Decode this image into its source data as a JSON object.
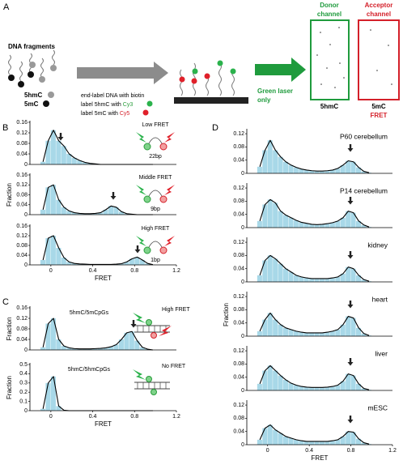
{
  "panel_labels": [
    "A",
    "B",
    "C",
    "D"
  ],
  "panel_a": {
    "dna_fragments": "DNA fragments",
    "legend": [
      "5hmC",
      "5mC"
    ],
    "step_1": "end-label DNA with biotin",
    "step_2": "label 5hmC with",
    "cy3": "Cy3",
    "step_3": "label 5mC with",
    "cy5": "Cy5",
    "laser": [
      "Green laser",
      "only"
    ],
    "donor": [
      "Donor",
      "channel"
    ],
    "acceptor": [
      "Acceptor",
      "channel"
    ],
    "donor_label": "5hmC",
    "acceptor_label": [
      "5mC",
      "FRET"
    ]
  },
  "chart_data": [
    {
      "type": "histogram",
      "annotations": [
        "Low FRET",
        "22bp"
      ],
      "color": "#a8d8e8",
      "line_color": "#000000",
      "bins": [
        -0.1,
        -0.05,
        0,
        0.05,
        0.1,
        0.15,
        0.2,
        0.25,
        0.3,
        0.35,
        0.4,
        0.45,
        0.5,
        0.55,
        0.6,
        0.65,
        0.7,
        0.75,
        0.8,
        0.85,
        0.9,
        0.95,
        1.0
      ],
      "values": [
        0.01,
        0.09,
        0.13,
        0.09,
        0.07,
        0.04,
        0.025,
        0.015,
        0.008,
        0.004,
        0.002,
        0,
        0,
        0,
        0,
        0,
        0,
        0,
        0,
        0,
        0,
        0
      ],
      "xlim": [
        -0.2,
        1.2
      ],
      "ylim": [
        0,
        0.16
      ],
      "yticks": [
        0,
        0.04,
        0.08,
        0.12,
        0.16
      ]
    },
    {
      "type": "histogram",
      "annotations": [
        "Middle FRET",
        "9bp"
      ],
      "ylabel": "Fraction",
      "color": "#a8d8e8",
      "line_color": "#000000",
      "bins": [
        -0.1,
        -0.05,
        0,
        0.05,
        0.1,
        0.15,
        0.2,
        0.25,
        0.3,
        0.35,
        0.4,
        0.45,
        0.5,
        0.55,
        0.6,
        0.65,
        0.7,
        0.75,
        0.8,
        0.85,
        0.9,
        0.95,
        1.0
      ],
      "values": [
        0.02,
        0.11,
        0.12,
        0.06,
        0.03,
        0.015,
        0.008,
        0.005,
        0.004,
        0.004,
        0.005,
        0.008,
        0.02,
        0.035,
        0.03,
        0.012,
        0.004,
        0.002,
        0,
        0,
        0,
        0
      ],
      "xlim": [
        -0.2,
        1.2
      ],
      "ylim": [
        0,
        0.16
      ],
      "yticks": [
        0,
        0.04,
        0.08,
        0.12,
        0.16
      ]
    },
    {
      "type": "histogram",
      "annotations": [
        "High FRET",
        "1bp"
      ],
      "xlabel": "FRET",
      "color": "#a8d8e8",
      "line_color": "#000000",
      "bins": [
        -0.1,
        -0.05,
        0,
        0.05,
        0.1,
        0.15,
        0.2,
        0.25,
        0.3,
        0.35,
        0.4,
        0.45,
        0.5,
        0.55,
        0.6,
        0.65,
        0.7,
        0.75,
        0.8,
        0.85,
        0.9,
        0.95,
        1.0
      ],
      "values": [
        0.02,
        0.11,
        0.12,
        0.07,
        0.03,
        0.012,
        0.006,
        0.004,
        0.003,
        0.002,
        0.002,
        0.002,
        0.002,
        0.002,
        0.003,
        0.005,
        0.012,
        0.025,
        0.032,
        0.02,
        0.006,
        0.001
      ],
      "xlim": [
        -0.2,
        1.2
      ],
      "ylim": [
        0,
        0.16
      ],
      "yticks": [
        0,
        0.04,
        0.08,
        0.12,
        0.16
      ],
      "xticks": [
        0,
        0.4,
        0.8,
        1.2
      ]
    },
    {
      "type": "histogram",
      "annotations": [
        "5hmC/5mCpGs",
        "High FRET"
      ],
      "ylabel": "Fraction",
      "color": "#a8d8e8",
      "line_color": "#000000",
      "bins": [
        -0.1,
        -0.05,
        0,
        0.05,
        0.1,
        0.15,
        0.2,
        0.25,
        0.3,
        0.35,
        0.4,
        0.45,
        0.5,
        0.55,
        0.6,
        0.65,
        0.7,
        0.75,
        0.8,
        0.85,
        0.9,
        0.95,
        1.0
      ],
      "values": [
        0.01,
        0.1,
        0.12,
        0.04,
        0.015,
        0.008,
        0.005,
        0.004,
        0.004,
        0.004,
        0.005,
        0.006,
        0.008,
        0.012,
        0.02,
        0.04,
        0.065,
        0.07,
        0.035,
        0.01,
        0.003,
        0
      ],
      "xlim": [
        -0.2,
        1.2
      ],
      "ylim": [
        0,
        0.16
      ],
      "yticks": [
        0,
        0.04,
        0.08,
        0.12,
        0.16
      ]
    },
    {
      "type": "histogram",
      "annotations": [
        "5hmC/5hmCpGs",
        "No FRET"
      ],
      "ylabel": "Fraction",
      "xlabel": "FRET",
      "color": "#a8d8e8",
      "line_color": "#000000",
      "bins": [
        -0.1,
        -0.05,
        0,
        0.05,
        0.1,
        0.15,
        0.2,
        0.25,
        0.3,
        0.35,
        0.4,
        0.45,
        0.5,
        0.55,
        0.6,
        0.65,
        0.7,
        0.75,
        0.8,
        0.85,
        0.9,
        0.95,
        1.0
      ],
      "values": [
        0.02,
        0.3,
        0.37,
        0.05,
        0.005,
        0,
        0,
        0,
        0,
        0,
        0,
        0,
        0,
        0,
        0,
        0,
        0,
        0,
        0,
        0,
        0,
        0
      ],
      "xlim": [
        -0.2,
        1.2
      ],
      "ylim": [
        0,
        0.5
      ],
      "yticks": [
        0,
        0.1,
        0.2,
        0.3,
        0.4,
        0.5
      ],
      "xticks": [
        0,
        0.4,
        0.8,
        1.2
      ]
    },
    {
      "type": "histogram",
      "title": "P60 cerebellum",
      "color": "#a8d8e8",
      "line_color": "#000000",
      "bins": [
        -0.1,
        -0.05,
        0,
        0.05,
        0.1,
        0.15,
        0.2,
        0.25,
        0.3,
        0.35,
        0.4,
        0.45,
        0.5,
        0.55,
        0.6,
        0.65,
        0.7,
        0.75,
        0.8,
        0.85,
        0.9,
        0.95,
        1.0
      ],
      "values": [
        0.02,
        0.07,
        0.1,
        0.07,
        0.05,
        0.035,
        0.025,
        0.018,
        0.013,
        0.01,
        0.008,
        0.007,
        0.007,
        0.008,
        0.01,
        0.015,
        0.025,
        0.038,
        0.035,
        0.018,
        0.006,
        0.002
      ],
      "xlim": [
        -0.2,
        1.2
      ],
      "ylim": [
        0,
        0.13
      ],
      "yticks": [
        0,
        0.04,
        0.08,
        0.12
      ]
    },
    {
      "type": "histogram",
      "title": "P14 cerebellum",
      "color": "#a8d8e8",
      "line_color": "#000000",
      "bins": [
        -0.1,
        -0.05,
        0,
        0.05,
        0.1,
        0.15,
        0.2,
        0.25,
        0.3,
        0.35,
        0.4,
        0.45,
        0.5,
        0.55,
        0.6,
        0.65,
        0.7,
        0.75,
        0.8,
        0.85,
        0.9,
        0.95,
        1.0
      ],
      "values": [
        0.02,
        0.07,
        0.085,
        0.075,
        0.05,
        0.038,
        0.03,
        0.022,
        0.016,
        0.013,
        0.01,
        0.009,
        0.01,
        0.012,
        0.015,
        0.02,
        0.03,
        0.05,
        0.045,
        0.02,
        0.008,
        0.002
      ],
      "xlim": [
        -0.2,
        1.2
      ],
      "ylim": [
        0,
        0.13
      ],
      "yticks": [
        0,
        0.04,
        0.08,
        0.12
      ]
    },
    {
      "type": "histogram",
      "title": "kidney",
      "color": "#a8d8e8",
      "line_color": "#000000",
      "bins": [
        -0.1,
        -0.05,
        0,
        0.05,
        0.1,
        0.15,
        0.2,
        0.25,
        0.3,
        0.35,
        0.4,
        0.45,
        0.5,
        0.55,
        0.6,
        0.65,
        0.7,
        0.75,
        0.8,
        0.85,
        0.9,
        0.95,
        1.0
      ],
      "values": [
        0.02,
        0.065,
        0.08,
        0.07,
        0.055,
        0.04,
        0.03,
        0.02,
        0.015,
        0.012,
        0.01,
        0.01,
        0.01,
        0.01,
        0.012,
        0.015,
        0.025,
        0.045,
        0.04,
        0.02,
        0.007,
        0.002
      ],
      "xlim": [
        -0.2,
        1.2
      ],
      "ylim": [
        0,
        0.13
      ],
      "yticks": [
        0,
        0.04,
        0.08,
        0.12
      ]
    },
    {
      "type": "histogram",
      "title": "heart",
      "ylabel": "Fraction",
      "color": "#a8d8e8",
      "line_color": "#000000",
      "bins": [
        -0.1,
        -0.05,
        0,
        0.05,
        0.1,
        0.15,
        0.2,
        0.25,
        0.3,
        0.35,
        0.4,
        0.45,
        0.5,
        0.55,
        0.6,
        0.65,
        0.7,
        0.75,
        0.8,
        0.85,
        0.9,
        0.95,
        1.0
      ],
      "values": [
        0.015,
        0.05,
        0.07,
        0.05,
        0.035,
        0.025,
        0.02,
        0.015,
        0.012,
        0.01,
        0.01,
        0.01,
        0.01,
        0.012,
        0.015,
        0.02,
        0.035,
        0.06,
        0.055,
        0.025,
        0.008,
        0.002
      ],
      "xlim": [
        -0.2,
        1.2
      ],
      "ylim": [
        0,
        0.13
      ],
      "yticks": [
        0,
        0.04,
        0.08,
        0.12
      ]
    },
    {
      "type": "histogram",
      "title": "liver",
      "color": "#a8d8e8",
      "line_color": "#000000",
      "bins": [
        -0.1,
        -0.05,
        0,
        0.05,
        0.1,
        0.15,
        0.2,
        0.25,
        0.3,
        0.35,
        0.4,
        0.45,
        0.5,
        0.55,
        0.6,
        0.65,
        0.7,
        0.75,
        0.8,
        0.85,
        0.9,
        0.95,
        1.0
      ],
      "values": [
        0.02,
        0.06,
        0.075,
        0.06,
        0.045,
        0.032,
        0.022,
        0.016,
        0.012,
        0.01,
        0.009,
        0.009,
        0.009,
        0.01,
        0.012,
        0.016,
        0.028,
        0.05,
        0.045,
        0.02,
        0.006,
        0.002
      ],
      "xlim": [
        -0.2,
        1.2
      ],
      "ylim": [
        0,
        0.13
      ],
      "yticks": [
        0,
        0.04,
        0.08,
        0.12
      ]
    },
    {
      "type": "histogram",
      "title": "mESC",
      "xlabel": "FRET",
      "color": "#a8d8e8",
      "line_color": "#000000",
      "bins": [
        -0.1,
        -0.05,
        0,
        0.05,
        0.1,
        0.15,
        0.2,
        0.25,
        0.3,
        0.35,
        0.4,
        0.45,
        0.5,
        0.55,
        0.6,
        0.65,
        0.7,
        0.75,
        0.8,
        0.85,
        0.9,
        0.95,
        1.0
      ],
      "values": [
        0.015,
        0.05,
        0.06,
        0.045,
        0.035,
        0.025,
        0.02,
        0.015,
        0.012,
        0.01,
        0.01,
        0.01,
        0.01,
        0.01,
        0.012,
        0.015,
        0.025,
        0.04,
        0.038,
        0.018,
        0.006,
        0.002
      ],
      "xlim": [
        -0.2,
        1.2
      ],
      "ylim": [
        0,
        0.13
      ],
      "yticks": [
        0,
        0.04,
        0.08,
        0.12
      ],
      "xticks": [
        0,
        0.4,
        0.8,
        1.2
      ]
    }
  ]
}
